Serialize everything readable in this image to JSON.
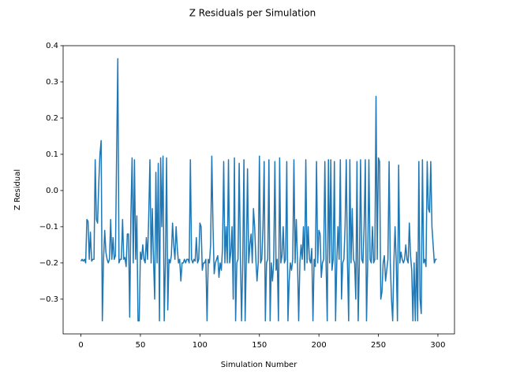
{
  "chart_data": {
    "type": "line",
    "title": "Z Residuals per Simulation",
    "x_label": "Simulation Number",
    "y_label": "Z Residual",
    "series": [
      {
        "name": "Z Residual",
        "color": "#1f77b4",
        "values": [
          -0.195,
          -0.19,
          -0.195,
          -0.19,
          -0.2,
          -0.08,
          -0.085,
          -0.19,
          -0.115,
          -0.195,
          -0.19,
          -0.19,
          0.085,
          -0.08,
          -0.09,
          0.02,
          0.1,
          0.138,
          -0.36,
          -0.19,
          -0.11,
          -0.17,
          -0.19,
          -0.2,
          -0.19,
          -0.08,
          -0.19,
          -0.13,
          -0.19,
          -0.18,
          0.1,
          0.364,
          -0.2,
          -0.19,
          -0.19,
          -0.08,
          -0.19,
          -0.185,
          -0.21,
          -0.12,
          -0.12,
          -0.35,
          -0.07,
          0.09,
          -0.2,
          0.085,
          -0.19,
          -0.07,
          -0.36,
          -0.36,
          -0.17,
          -0.19,
          -0.15,
          -0.19,
          -0.2,
          -0.13,
          -0.19,
          -0.07,
          0.085,
          -0.2,
          -0.05,
          -0.19,
          -0.3,
          0.05,
          -0.2,
          0.075,
          -0.36,
          0.09,
          -0.1,
          0.095,
          -0.36,
          -0.2,
          0.09,
          -0.33,
          -0.19,
          -0.2,
          -0.18,
          -0.09,
          -0.15,
          -0.19,
          -0.1,
          -0.16,
          -0.2,
          -0.19,
          -0.25,
          -0.2,
          -0.2,
          -0.19,
          -0.2,
          -0.19,
          -0.19,
          -0.2,
          0.085,
          -0.19,
          -0.2,
          -0.19,
          -0.195,
          -0.13,
          -0.2,
          -0.19,
          -0.09,
          -0.1,
          -0.22,
          -0.2,
          -0.2,
          -0.19,
          -0.36,
          -0.19,
          -0.2,
          -0.15,
          0.095,
          -0.1,
          -0.23,
          -0.2,
          -0.19,
          -0.18,
          -0.24,
          -0.2,
          -0.22,
          -0.16,
          0.08,
          -0.2,
          -0.1,
          -0.2,
          0.085,
          -0.2,
          -0.17,
          -0.1,
          -0.3,
          0.09,
          -0.36,
          -0.2,
          -0.19,
          0.075,
          -0.18,
          -0.36,
          -0.2,
          0.085,
          -0.36,
          -0.19,
          0.06,
          -0.2,
          -0.15,
          -0.12,
          -0.2,
          -0.05,
          -0.1,
          -0.19,
          -0.25,
          -0.2,
          0.095,
          -0.2,
          -0.19,
          -0.1,
          0.08,
          -0.36,
          -0.2,
          -0.19,
          0.085,
          -0.36,
          -0.2,
          -0.25,
          -0.2,
          0.08,
          -0.22,
          -0.19,
          -0.36,
          0.09,
          -0.2,
          -0.18,
          -0.1,
          -0.2,
          -0.19,
          0.08,
          -0.36,
          -0.25,
          -0.2,
          -0.22,
          -0.19,
          0.085,
          -0.2,
          -0.08,
          -0.19,
          -0.36,
          -0.2,
          -0.15,
          -0.19,
          -0.1,
          -0.22,
          0.085,
          -0.2,
          -0.1,
          -0.19,
          -0.2,
          -0.16,
          -0.36,
          -0.19,
          -0.21,
          0.08,
          -0.2,
          -0.11,
          -0.12,
          -0.24,
          -0.2,
          -0.19,
          0.08,
          -0.2,
          -0.36,
          0.085,
          -0.2,
          0.085,
          -0.22,
          -0.19,
          0.08,
          -0.36,
          -0.2,
          -0.1,
          -0.19,
          0.085,
          -0.3,
          -0.2,
          -0.19,
          -0.1,
          0.085,
          -0.2,
          -0.36,
          0.085,
          -0.2,
          -0.05,
          -0.19,
          -0.2,
          -0.3,
          0.08,
          -0.36,
          -0.2,
          0.085,
          -0.19,
          -0.2,
          -0.1,
          0.085,
          -0.36,
          -0.2,
          0.085,
          -0.19,
          -0.2,
          -0.1,
          -0.2,
          -0.19,
          0.26,
          -0.19,
          0.09,
          0.08,
          -0.3,
          -0.28,
          -0.2,
          -0.18,
          -0.25,
          -0.22,
          -0.19,
          0.08,
          -0.2,
          -0.3,
          -0.36,
          -0.2,
          -0.1,
          -0.2,
          -0.36,
          0.07,
          -0.2,
          -0.17,
          -0.19,
          -0.2,
          -0.19,
          -0.15,
          -0.19,
          -0.2,
          -0.09,
          -0.18,
          -0.22,
          -0.36,
          -0.2,
          -0.36,
          -0.17,
          -0.36,
          0.08,
          -0.3,
          -0.34,
          0.085,
          -0.2,
          -0.19,
          -0.21,
          0.08,
          -0.05,
          -0.06,
          0.08,
          -0.1,
          -0.15,
          -0.2,
          -0.19,
          -0.19
        ]
      }
    ],
    "xlim": [
      -14.95,
      313.95
    ],
    "xticks": [
      0,
      50,
      100,
      150,
      200,
      250,
      300
    ],
    "ylim": [
      -0.396,
      0.4
    ],
    "yticks": [
      {
        "value": -0.3,
        "label": "−0.3"
      },
      {
        "value": -0.2,
        "label": "−0.2"
      },
      {
        "value": -0.1,
        "label": "−0.1"
      },
      {
        "value": 0,
        "label": "0.0"
      },
      0.1,
      0.2,
      0.3,
      0.4
    ],
    "grid": false
  }
}
